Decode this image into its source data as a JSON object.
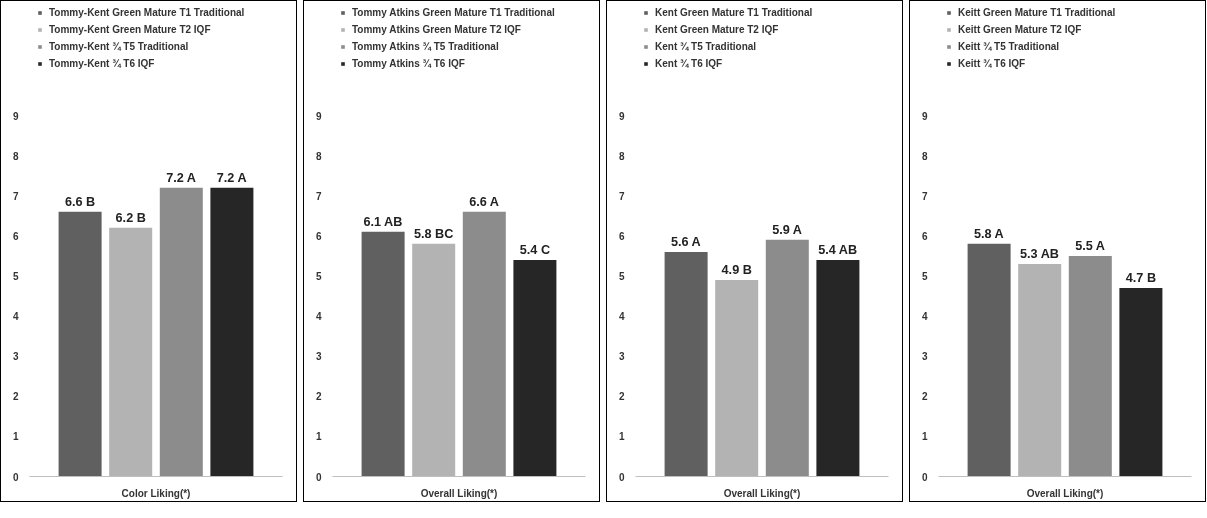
{
  "chart_data": [
    {
      "type": "bar",
      "categories": [
        "Color Liking(*)"
      ],
      "ylim": [
        0,
        9
      ],
      "yticks": [
        0,
        1,
        2,
        3,
        4,
        5,
        6,
        7,
        8,
        9
      ],
      "legend": "top",
      "series": [
        {
          "name": "Tommy-Kent Green Mature T1 Traditional",
          "color": "#606060",
          "values": [
            6.6
          ],
          "value_labels": [
            "6.6 B"
          ]
        },
        {
          "name": "Tommy-Kent Green Mature T2 IQF",
          "color": "#b3b3b3",
          "values": [
            6.2
          ],
          "value_labels": [
            "6.2 B"
          ]
        },
        {
          "name": "Tommy-Kent ¾ T5 Traditional",
          "color": "#8c8c8c",
          "values": [
            7.2
          ],
          "value_labels": [
            "7.2 A"
          ]
        },
        {
          "name": "Tommy-Kent ¾ T6 IQF",
          "color": "#262626",
          "values": [
            7.2
          ],
          "value_labels": [
            "7.2 A"
          ]
        }
      ]
    },
    {
      "type": "bar",
      "categories": [
        "Overall Liking(*)"
      ],
      "ylim": [
        0,
        9
      ],
      "yticks": [
        0,
        1,
        2,
        3,
        4,
        5,
        6,
        7,
        8,
        9
      ],
      "legend": "top",
      "series": [
        {
          "name": "Tommy Atkins Green Mature T1 Traditional",
          "color": "#606060",
          "values": [
            6.1
          ],
          "value_labels": [
            "6.1 AB"
          ]
        },
        {
          "name": "Tommy Atkins Green Mature T2 IQF",
          "color": "#b3b3b3",
          "values": [
            5.8
          ],
          "value_labels": [
            "5.8 BC"
          ]
        },
        {
          "name": "Tommy Atkins ¾ T5 Traditional",
          "color": "#8c8c8c",
          "values": [
            6.6
          ],
          "value_labels": [
            "6.6 A"
          ]
        },
        {
          "name": "Tommy Atkins ¾ T6 IQF",
          "color": "#262626",
          "values": [
            5.4
          ],
          "value_labels": [
            "5.4 C"
          ]
        }
      ]
    },
    {
      "type": "bar",
      "categories": [
        "Overall Liking(*)"
      ],
      "ylim": [
        0,
        9
      ],
      "yticks": [
        0,
        1,
        2,
        3,
        4,
        5,
        6,
        7,
        8,
        9
      ],
      "legend": "top",
      "series": [
        {
          "name": "Kent Green Mature T1 Traditional",
          "color": "#606060",
          "values": [
            5.6
          ],
          "value_labels": [
            "5.6 A"
          ]
        },
        {
          "name": "Kent Green Mature T2 IQF",
          "color": "#b3b3b3",
          "values": [
            4.9
          ],
          "value_labels": [
            "4.9 B"
          ]
        },
        {
          "name": "Kent ¾ T5 Traditional",
          "color": "#8c8c8c",
          "values": [
            5.9
          ],
          "value_labels": [
            "5.9 A"
          ]
        },
        {
          "name": "Kent ¾ T6 IQF",
          "color": "#262626",
          "values": [
            5.4
          ],
          "value_labels": [
            "5.4 AB"
          ]
        }
      ]
    },
    {
      "type": "bar",
      "categories": [
        "Overall Liking(*)"
      ],
      "ylim": [
        0,
        9
      ],
      "yticks": [
        0,
        1,
        2,
        3,
        4,
        5,
        6,
        7,
        8,
        9
      ],
      "legend": "top",
      "series": [
        {
          "name": "Keitt Green Mature T1 Traditional",
          "color": "#606060",
          "values": [
            5.8
          ],
          "value_labels": [
            "5.8 A"
          ]
        },
        {
          "name": "Keitt Green Mature T2 IQF",
          "color": "#b3b3b3",
          "values": [
            5.3
          ],
          "value_labels": [
            "5.3 AB"
          ]
        },
        {
          "name": "Keitt ¾ T5 Traditional",
          "color": "#8c8c8c",
          "values": [
            5.5
          ],
          "value_labels": [
            "5.5 A"
          ]
        },
        {
          "name": "Keitt ¾ T6 IQF",
          "color": "#262626",
          "values": [
            4.7
          ],
          "value_labels": [
            "4.7 B"
          ]
        }
      ]
    }
  ]
}
